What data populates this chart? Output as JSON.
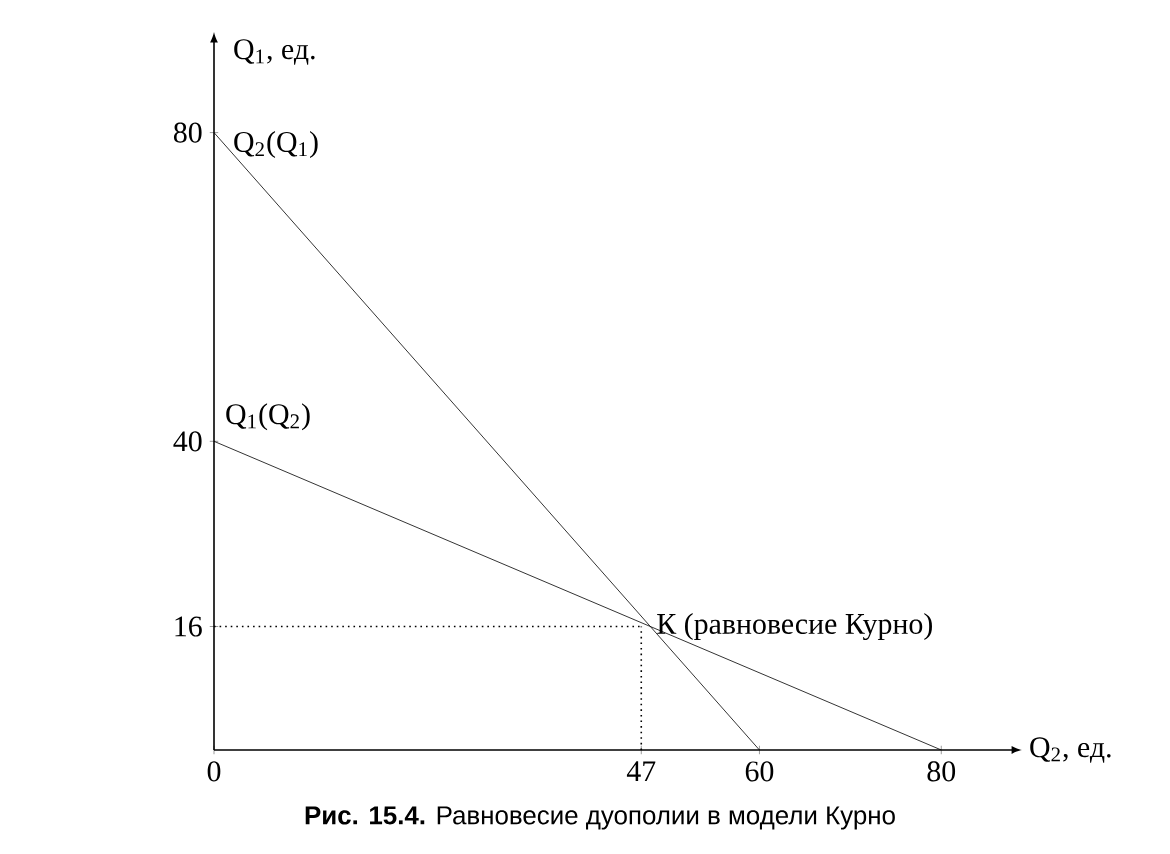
{
  "chart_data": {
    "type": "line",
    "xlabel": "Q$_{2}$, ед.",
    "ylabel": "Q$_{1}$, ед.",
    "series": [
      {
        "name": "Q$_{2}$(Q$_{1}$)",
        "color": "#000000",
        "x": [
          0,
          60
        ],
        "values": [
          80,
          0
        ]
      },
      {
        "name": "Q$_{1}$(Q$_{2}$)",
        "color": "#000000",
        "x": [
          0,
          80
        ],
        "values": [
          40,
          0
        ]
      }
    ],
    "xlim": [
      0,
      88
    ],
    "ylim": [
      0,
      92
    ],
    "xticks": [
      0,
      47,
      60,
      80
    ],
    "yticks": [
      16,
      40,
      80
    ],
    "ref_lines": [
      {
        "axis": "x",
        "value": 47,
        "line_style": "dotted"
      },
      {
        "axis": "y",
        "value": 16,
        "line_style": "dotted"
      }
    ],
    "annotations": [
      {
        "text": "К (равновесие Курно)",
        "x": 47,
        "y": 16
      },
      "**Рис. 15.4.** Равновесие дуополии в модели Курно"
    ],
    "legend": false,
    "grid": false,
    "marker": "none",
    "line_style": "solid"
  }
}
